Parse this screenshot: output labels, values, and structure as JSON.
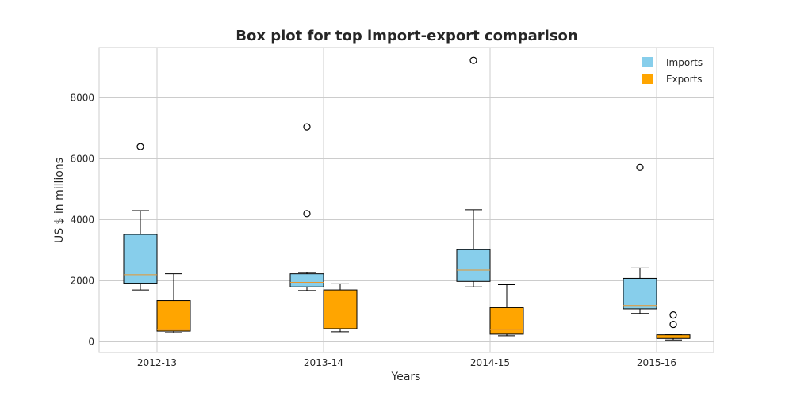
{
  "chart_data": {
    "type": "box",
    "title": "Box plot for top import-export comparison",
    "xlabel": "Years",
    "ylabel": "US $ in millions",
    "categories": [
      "2012-13",
      "2013-14",
      "2014-15",
      "2015-16"
    ],
    "ylim": [
      -350,
      9650
    ],
    "yticks": [
      0,
      2000,
      4000,
      6000,
      8000
    ],
    "grid": true,
    "legend_position": "top-right",
    "series": [
      {
        "name": "Imports",
        "color": "#87CEEB",
        "boxes": [
          {
            "whislo": 1700,
            "q1": 1920,
            "med": 2200,
            "q3": 3520,
            "whishi": 4300,
            "fliers": [
              6400
            ]
          },
          {
            "whislo": 1680,
            "q1": 1800,
            "med": 1950,
            "q3": 2230,
            "whishi": 2270,
            "fliers": [
              4200,
              7050
            ]
          },
          {
            "whislo": 1800,
            "q1": 1980,
            "med": 2350,
            "q3": 3020,
            "whishi": 4330,
            "fliers": [
              9230
            ]
          },
          {
            "whislo": 930,
            "q1": 1080,
            "med": 1190,
            "q3": 2080,
            "whishi": 2420,
            "fliers": [
              5720
            ]
          }
        ]
      },
      {
        "name": "Exports",
        "color": "#FFA500",
        "boxes": [
          {
            "whislo": 300,
            "q1": 350,
            "med": 400,
            "q3": 1350,
            "whishi": 2230,
            "fliers": []
          },
          {
            "whislo": 330,
            "q1": 430,
            "med": 780,
            "q3": 1700,
            "whishi": 1900,
            "fliers": []
          },
          {
            "whislo": 200,
            "q1": 250,
            "med": 400,
            "q3": 1120,
            "whishi": 1870,
            "fliers": []
          },
          {
            "whislo": 60,
            "q1": 110,
            "med": 160,
            "q3": 230,
            "whishi": 230,
            "fliers": [
              570,
              880
            ]
          }
        ]
      }
    ],
    "colors": {
      "median": "#E8962E",
      "box_edge": "#000000",
      "grid": "#CCCCCC",
      "spine": "#CCCCCC"
    }
  }
}
